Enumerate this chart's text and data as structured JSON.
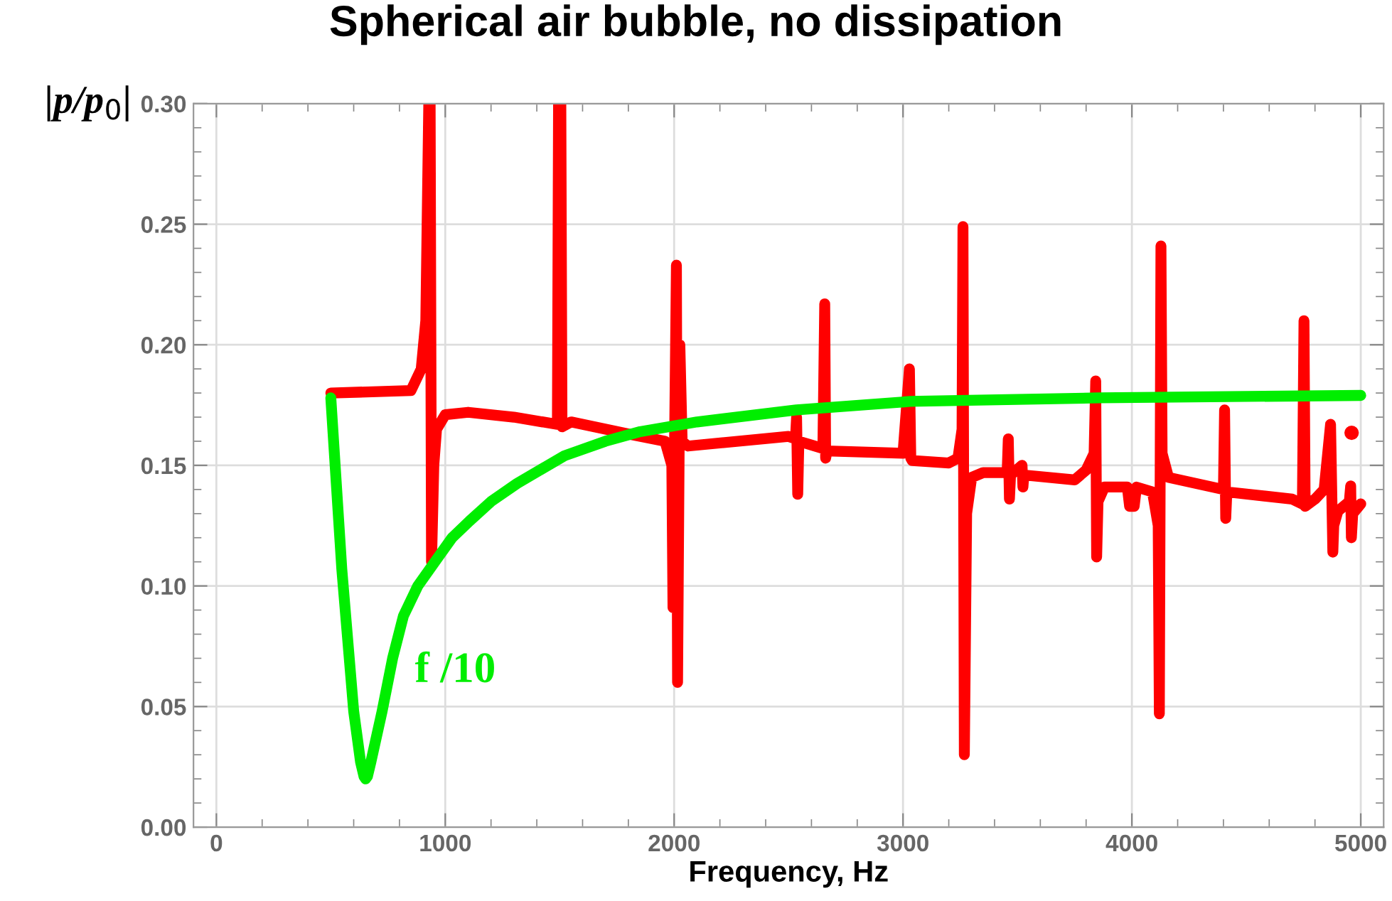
{
  "chart_data": {
    "type": "line",
    "title": "Spherical air bubble, no dissipation",
    "xlabel": "Frequency, Hz",
    "ylabel": "|p/p$_{0}$|",
    "xlim": [
      -100,
      5100
    ],
    "ylim": [
      0,
      0.3
    ],
    "xticks": [
      0,
      1000,
      2000,
      3000,
      4000,
      5000
    ],
    "yticks": [
      {
        "value": 0,
        "label": "0.00"
      },
      {
        "value": 0.05,
        "label": "0.05"
      },
      {
        "value": 0.1,
        "label": "0.10"
      },
      {
        "value": 0.15,
        "label": "0.15"
      },
      {
        "value": 0.2,
        "label": "0.20"
      },
      {
        "value": 0.25,
        "label": "0.25"
      },
      {
        "value": 0.3,
        "label": "0.30"
      }
    ],
    "grid": true,
    "annotations": [
      "f /10"
    ],
    "series": [
      {
        "color": "#ff0000",
        "x": [
          500,
          850,
          895,
          915,
          928,
          934,
          940,
          950,
          962,
          1000,
          1100,
          1300,
          1490,
          1495,
          1505,
          1510,
          1550,
          1800,
          1960,
          1990,
          1995,
          2002,
          2010,
          2015,
          2025,
          2035,
          2060,
          2500,
          2530,
          2535,
          2540,
          2545,
          2650,
          2658,
          2662,
          2668,
          3000,
          3028,
          3034,
          3040,
          3200,
          3240,
          3258,
          3262,
          3268,
          3278,
          3300,
          3350,
          3455,
          3460,
          3465,
          3470,
          3520,
          3524,
          3528,
          3750,
          3800,
          3835,
          3842,
          3846,
          3852,
          3880,
          3980,
          3990,
          4010,
          4020,
          4090,
          4115,
          4120,
          4127,
          4132,
          4160,
          4400,
          4405,
          4410,
          4415,
          4700,
          4745,
          4752,
          4757,
          4800,
          4840,
          4868,
          4878,
          4882,
          4900,
          4950,
          4956,
          4959,
          4965,
          5000
        ],
        "values": [
          0.18,
          0.181,
          0.19,
          0.21,
          0.3,
          0.3,
          0.11,
          0.15,
          0.165,
          0.171,
          0.172,
          0.17,
          0.167,
          0.3,
          0.3,
          0.166,
          0.168,
          0.163,
          0.16,
          0.15,
          0.091,
          0.16,
          0.233,
          0.06,
          0.2,
          0.16,
          0.158,
          0.162,
          0.161,
          0.17,
          0.138,
          0.16,
          0.157,
          0.217,
          0.153,
          0.156,
          0.155,
          0.19,
          0.153,
          0.152,
          0.151,
          0.153,
          0.165,
          0.249,
          0.03,
          0.13,
          0.145,
          0.147,
          0.147,
          0.161,
          0.136,
          0.146,
          0.15,
          0.141,
          0.146,
          0.144,
          0.148,
          0.155,
          0.185,
          0.112,
          0.135,
          0.141,
          0.141,
          0.133,
          0.133,
          0.141,
          0.139,
          0.125,
          0.047,
          0.241,
          0.155,
          0.145,
          0.14,
          0.173,
          0.128,
          0.139,
          0.136,
          0.134,
          0.21,
          0.133,
          0.136,
          0.14,
          0.167,
          0.114,
          0.125,
          0.131,
          0.135,
          0.1415,
          0.12,
          0.13,
          0.134
        ]
      },
      {
        "type": "scatter",
        "color": "#ff0000",
        "x": [
          4960
        ],
        "values": [
          0.1635
        ]
      },
      {
        "color": "#00ee00",
        "x": [
          500,
          548,
          600,
          630,
          645,
          652,
          660,
          675,
          724,
          770,
          817,
          880,
          962,
          1030,
          1107,
          1200,
          1314,
          1521,
          1700,
          1852,
          2100,
          2534,
          3031,
          3857,
          5000
        ],
        "values": [
          0.178,
          0.107,
          0.048,
          0.027,
          0.021,
          0.02,
          0.021,
          0.027,
          0.048,
          0.07,
          0.0875,
          0.1,
          0.111,
          0.12,
          0.127,
          0.135,
          0.1425,
          0.154,
          0.16,
          0.164,
          0.168,
          0.173,
          0.1765,
          0.178,
          0.179
        ]
      }
    ]
  }
}
